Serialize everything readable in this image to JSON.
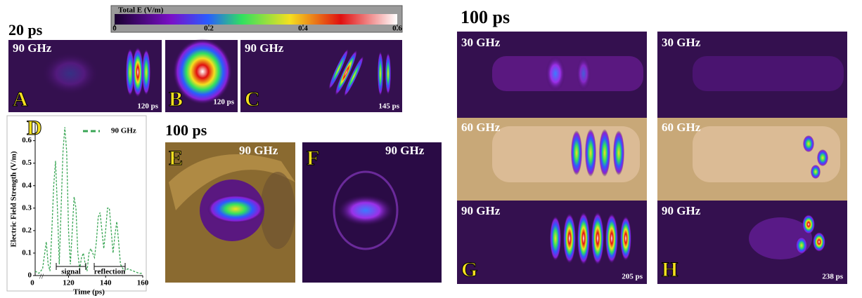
{
  "colorbar": {
    "title": "Total E (V/m)",
    "lim": [
      0,
      0.6
    ],
    "ticks": [
      0,
      0.2,
      0.4,
      0.6
    ]
  },
  "time_labels": [
    "20 ps",
    "100 ps",
    "100 ps"
  ],
  "panels": [
    {
      "letter": "A",
      "frequencies": [
        "90 GHz"
      ],
      "time": "120 ps"
    },
    {
      "letter": "B",
      "frequencies": [],
      "time": "120 ps"
    },
    {
      "letter": "C",
      "frequencies": [
        "90 GHz"
      ],
      "time": "145 ps"
    },
    {
      "letter": "E",
      "frequencies": [
        "90 GHz"
      ],
      "time": null
    },
    {
      "letter": "F",
      "frequencies": [
        "90 GHz"
      ],
      "time": null
    },
    {
      "letter": "G",
      "frequencies": [
        "30 GHz",
        "60 GHz",
        "90 GHz"
      ],
      "time": "205 ps"
    },
    {
      "letter": "H",
      "frequencies": [
        "30 GHz",
        "60 GHz",
        "90 GHz"
      ],
      "time": "238 ps"
    }
  ],
  "chart_data": {
    "type": "line",
    "letter": "D",
    "xlabel": "Time (ps)",
    "ylabel": "Electric Field Strength (V/m)",
    "x": [
      102,
      104,
      106,
      108,
      109,
      110,
      111,
      112,
      113,
      114,
      115,
      116,
      117,
      118,
      119,
      120,
      121,
      122,
      123,
      124,
      125,
      126,
      127,
      128,
      129,
      130,
      131,
      132,
      133,
      134,
      135,
      136,
      137,
      138,
      139,
      140,
      141,
      142,
      143,
      144,
      145,
      146,
      147,
      148,
      150,
      152,
      155,
      158,
      160
    ],
    "series": [
      {
        "name": "90 GHz",
        "color": "#3aa655",
        "values": [
          0.02,
          0.01,
          0.03,
          0.15,
          0.05,
          0.02,
          0.2,
          0.4,
          0.51,
          0.3,
          0.05,
          0.3,
          0.55,
          0.66,
          0.55,
          0.2,
          0.05,
          0.2,
          0.35,
          0.3,
          0.1,
          0.03,
          0.08,
          0.1,
          0.05,
          0.02,
          0.1,
          0.12,
          0.1,
          0.08,
          0.15,
          0.26,
          0.28,
          0.2,
          0.12,
          0.2,
          0.3,
          0.3,
          0.2,
          0.1,
          0.18,
          0.24,
          0.15,
          0.05,
          0.02,
          0.03,
          0.02,
          0.01,
          0.01
        ]
      }
    ],
    "xlim": [
      102,
      160
    ],
    "ylim": [
      0,
      0.68
    ],
    "xticks": [
      120,
      140,
      160
    ],
    "yticks": [
      0,
      0.1,
      0.2,
      0.3,
      0.4,
      0.5,
      0.6
    ],
    "axis_origin_label": "0",
    "annotations": [
      "signal",
      "reflection"
    ],
    "legend": "upper right"
  }
}
